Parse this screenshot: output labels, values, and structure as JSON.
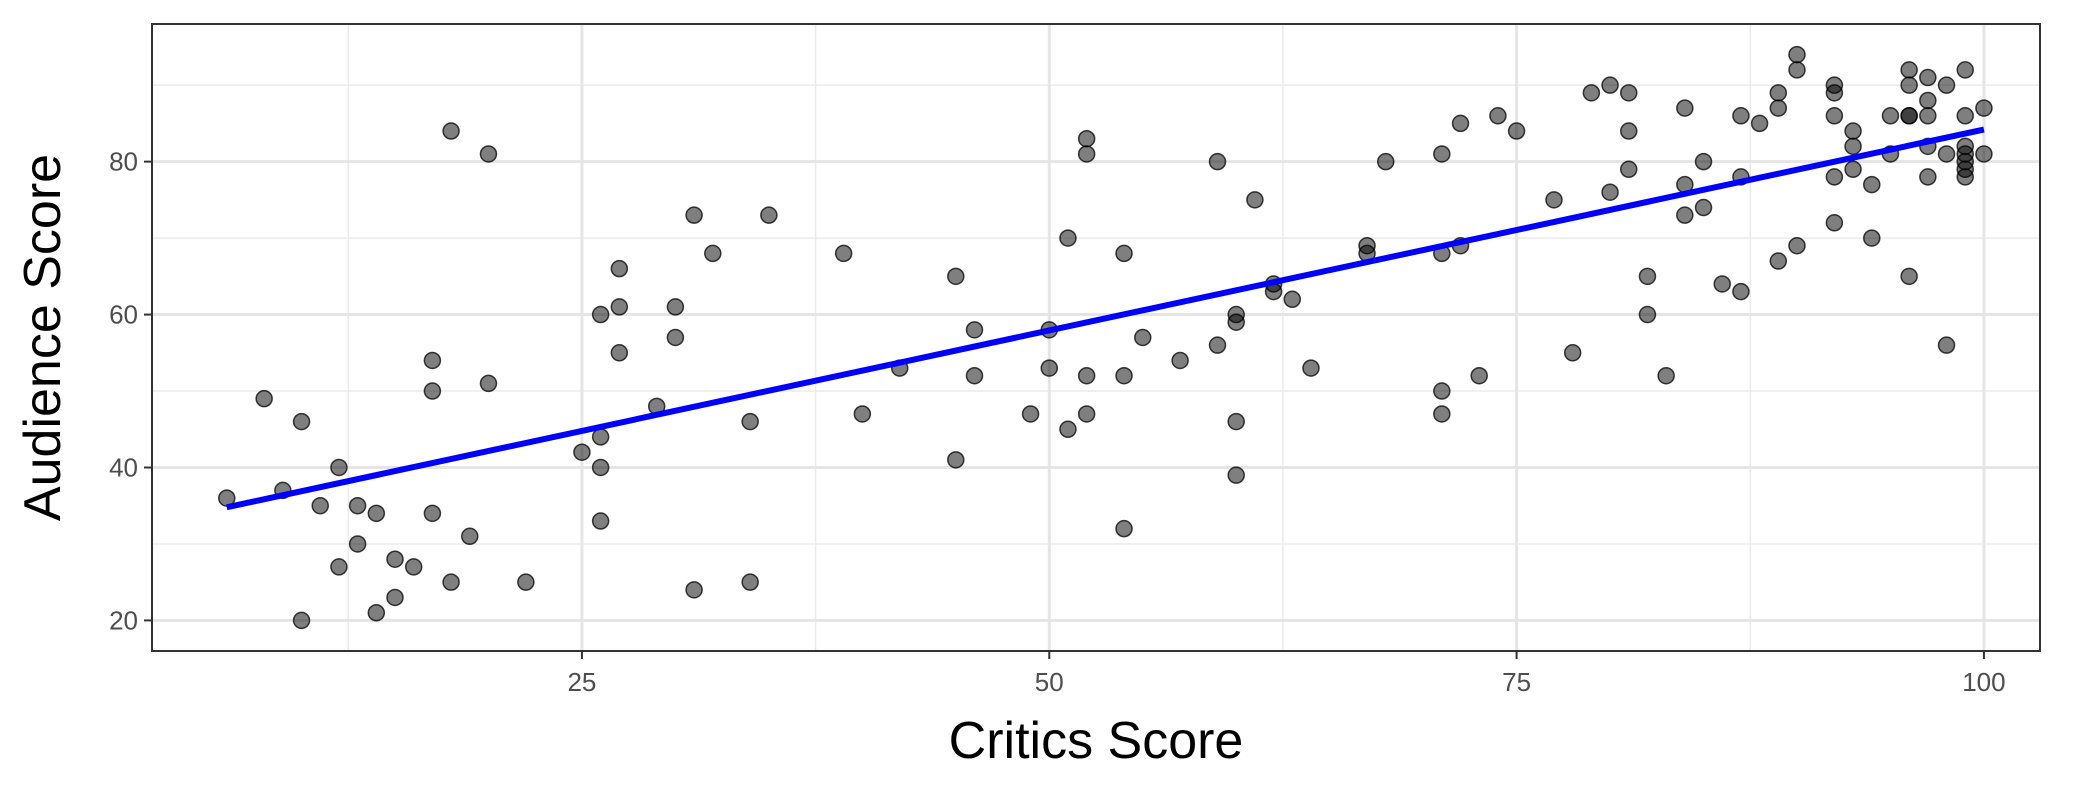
{
  "chart_data": {
    "type": "scatter",
    "title": "",
    "xlabel": "Critics Score",
    "ylabel": "Audience Score",
    "xlim": [
      2,
      103
    ],
    "ylim": [
      16,
      98
    ],
    "x_ticks": [
      25,
      50,
      75,
      100
    ],
    "x_minor_ticks": [
      12.5,
      37.5,
      62.5,
      87.5
    ],
    "y_ticks": [
      20,
      40,
      60,
      80
    ],
    "y_minor_ticks": [
      30,
      50,
      70,
      90
    ],
    "grid": true,
    "legend": "none",
    "points": [
      [
        6,
        36
      ],
      [
        8,
        49
      ],
      [
        9,
        37
      ],
      [
        10,
        46
      ],
      [
        10,
        20
      ],
      [
        11,
        35
      ],
      [
        12,
        27
      ],
      [
        12,
        40
      ],
      [
        13,
        35
      ],
      [
        13,
        30
      ],
      [
        14,
        34
      ],
      [
        14,
        21
      ],
      [
        15,
        28
      ],
      [
        15,
        23
      ],
      [
        17,
        54
      ],
      [
        17,
        50
      ],
      [
        17,
        34
      ],
      [
        18,
        84
      ],
      [
        18,
        25
      ],
      [
        19,
        31
      ],
      [
        20,
        81
      ],
      [
        20,
        51
      ],
      [
        16,
        27
      ],
      [
        22,
        25
      ],
      [
        25,
        42
      ],
      [
        26,
        60
      ],
      [
        26,
        44
      ],
      [
        26,
        40
      ],
      [
        26,
        33
      ],
      [
        27,
        66
      ],
      [
        27,
        61
      ],
      [
        27,
        55
      ],
      [
        29,
        48
      ],
      [
        30,
        61
      ],
      [
        30,
        57
      ],
      [
        31,
        73
      ],
      [
        31,
        24
      ],
      [
        32,
        68
      ],
      [
        34,
        46
      ],
      [
        34,
        25
      ],
      [
        35,
        73
      ],
      [
        39,
        68
      ],
      [
        40,
        47
      ],
      [
        42,
        53
      ],
      [
        45,
        65
      ],
      [
        45,
        41
      ],
      [
        46,
        58
      ],
      [
        46,
        52
      ],
      [
        49,
        47
      ],
      [
        50,
        58
      ],
      [
        50,
        53
      ],
      [
        51,
        70
      ],
      [
        51,
        45
      ],
      [
        52,
        83
      ],
      [
        52,
        81
      ],
      [
        52,
        52
      ],
      [
        52,
        47
      ],
      [
        54,
        68
      ],
      [
        54,
        52
      ],
      [
        54,
        32
      ],
      [
        55,
        57
      ],
      [
        57,
        54
      ],
      [
        59,
        80
      ],
      [
        59,
        56
      ],
      [
        60,
        60
      ],
      [
        60,
        59
      ],
      [
        60,
        46
      ],
      [
        60,
        39
      ],
      [
        61,
        75
      ],
      [
        62,
        64
      ],
      [
        62,
        63
      ],
      [
        63,
        62
      ],
      [
        64,
        53
      ],
      [
        67,
        69
      ],
      [
        67,
        68
      ],
      [
        68,
        80
      ],
      [
        71,
        81
      ],
      [
        71,
        68
      ],
      [
        71,
        50
      ],
      [
        71,
        47
      ],
      [
        72,
        85
      ],
      [
        72,
        69
      ],
      [
        73,
        52
      ],
      [
        74,
        86
      ],
      [
        75,
        84
      ],
      [
        77,
        75
      ],
      [
        78,
        55
      ],
      [
        79,
        89
      ],
      [
        80,
        90
      ],
      [
        80,
        76
      ],
      [
        81,
        89
      ],
      [
        81,
        84
      ],
      [
        81,
        79
      ],
      [
        82,
        65
      ],
      [
        82,
        60
      ],
      [
        83,
        52
      ],
      [
        84,
        87
      ],
      [
        84,
        77
      ],
      [
        84,
        73
      ],
      [
        85,
        80
      ],
      [
        85,
        74
      ],
      [
        86,
        64
      ],
      [
        87,
        86
      ],
      [
        87,
        78
      ],
      [
        87,
        63
      ],
      [
        88,
        85
      ],
      [
        89,
        89
      ],
      [
        89,
        87
      ],
      [
        89,
        67
      ],
      [
        90,
        94
      ],
      [
        90,
        92
      ],
      [
        90,
        69
      ],
      [
        92,
        90
      ],
      [
        92,
        89
      ],
      [
        92,
        86
      ],
      [
        92,
        78
      ],
      [
        92,
        72
      ],
      [
        93,
        84
      ],
      [
        93,
        82
      ],
      [
        93,
        79
      ],
      [
        94,
        77
      ],
      [
        94,
        70
      ],
      [
        95,
        86
      ],
      [
        95,
        81
      ],
      [
        96,
        92
      ],
      [
        96,
        90
      ],
      [
        96,
        86
      ],
      [
        96,
        86
      ],
      [
        96,
        65
      ],
      [
        97,
        91
      ],
      [
        97,
        88
      ],
      [
        97,
        86
      ],
      [
        97,
        82
      ],
      [
        97,
        78
      ],
      [
        98,
        90
      ],
      [
        98,
        81
      ],
      [
        98,
        56
      ],
      [
        99,
        92
      ],
      [
        99,
        86
      ],
      [
        99,
        82
      ],
      [
        99,
        81
      ],
      [
        99,
        80
      ],
      [
        99,
        79
      ],
      [
        99,
        78
      ],
      [
        100,
        87
      ],
      [
        100,
        81
      ]
    ],
    "fit_line": {
      "x": [
        6,
        100
      ],
      "y": [
        34.8,
        84.2
      ],
      "color": "#0000ff"
    },
    "point_color": "#000000",
    "point_opacity": 0.5
  }
}
